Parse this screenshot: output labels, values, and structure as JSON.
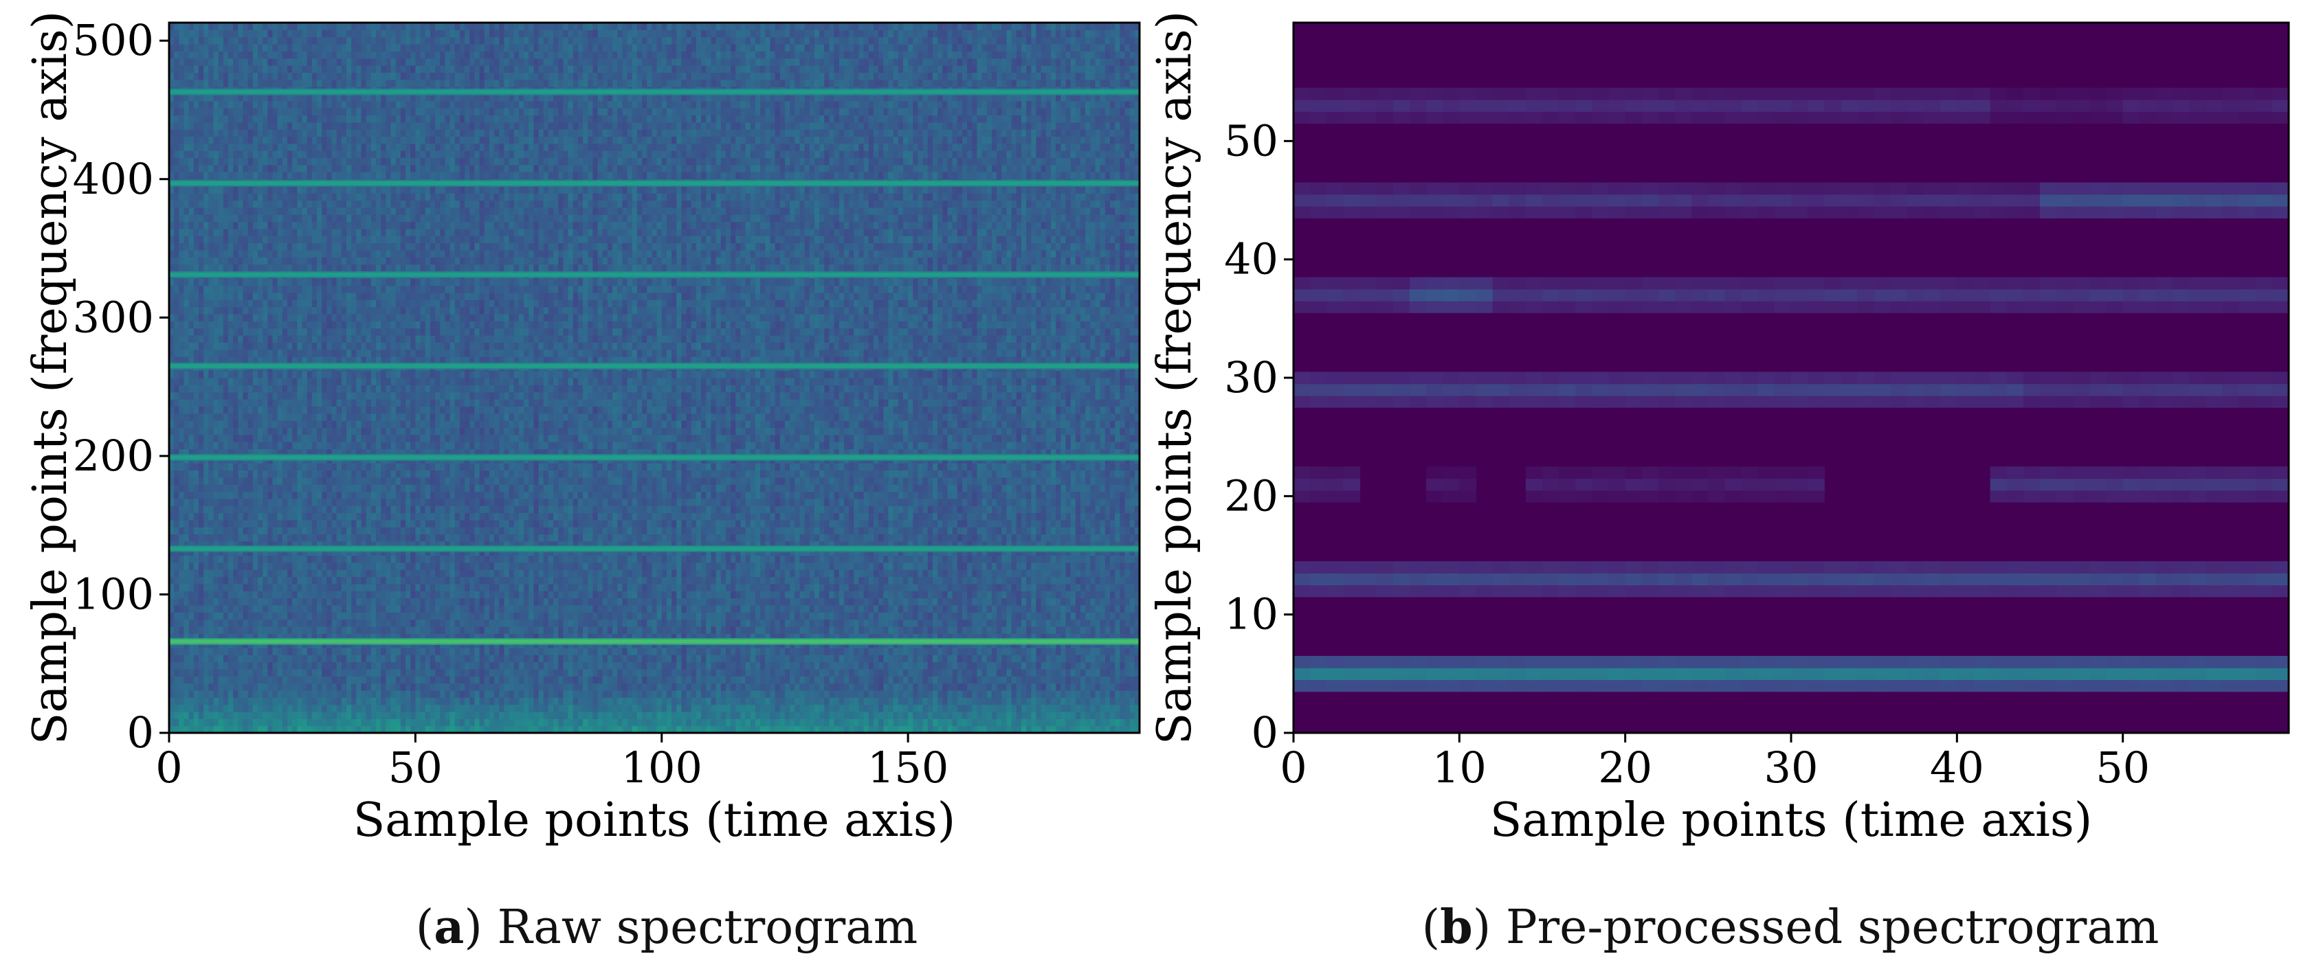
{
  "chart_data": [
    {
      "type": "heatmap",
      "caption_label": "a",
      "caption_text": "Raw spectrogram",
      "xlabel": "Sample points (time axis)",
      "ylabel": "Sample points (frequency axis)",
      "xlim": [
        0,
        197
      ],
      "ylim": [
        0,
        513
      ],
      "xticks": [
        0,
        50,
        100,
        150
      ],
      "yticks": [
        0,
        100,
        200,
        300,
        400,
        500
      ],
      "colormap": "viridis",
      "grid": false,
      "base_level": 0.3,
      "low_freq_rise": {
        "bins": 30,
        "level": 0.47
      },
      "bright_lines": [
        {
          "y": 66,
          "level": 0.7
        },
        {
          "y": 133,
          "level": 0.56
        },
        {
          "y": 199,
          "level": 0.56
        },
        {
          "y": 265,
          "level": 0.56
        },
        {
          "y": 331,
          "level": 0.55
        },
        {
          "y": 397,
          "level": 0.56
        },
        {
          "y": 463,
          "level": 0.55
        }
      ]
    },
    {
      "type": "heatmap",
      "caption_label": "b",
      "caption_text": "Pre-processed spectrogram",
      "xlabel": "Sample points (time axis)",
      "ylabel": "Sample points (frequency axis)",
      "xlim": [
        0,
        60
      ],
      "ylim": [
        0,
        60
      ],
      "xticks": [
        0,
        10,
        20,
        30,
        40,
        50
      ],
      "yticks": [
        0,
        10,
        20,
        30,
        40,
        50
      ],
      "colormap": "viridis",
      "grid": false,
      "background_level": 0.0,
      "bands": [
        {
          "y_center": 5,
          "rows": 3,
          "segments": [
            [
              0,
              60,
              0.42
            ]
          ]
        },
        {
          "y_center": 13,
          "rows": 3,
          "segments": [
            [
              0,
              60,
              0.22
            ]
          ]
        },
        {
          "y_center": 21,
          "rows": 3,
          "segments": [
            [
              0,
              4,
              0.1
            ],
            [
              8,
              11,
              0.06
            ],
            [
              14,
              32,
              0.08
            ],
            [
              42,
              60,
              0.16
            ]
          ]
        },
        {
          "y_center": 29,
          "rows": 3,
          "segments": [
            [
              0,
              44,
              0.2
            ],
            [
              44,
              60,
              0.16
            ]
          ]
        },
        {
          "y_center": 37,
          "rows": 3,
          "segments": [
            [
              0,
              7,
              0.16
            ],
            [
              7,
              12,
              0.26
            ],
            [
              12,
              60,
              0.16
            ]
          ]
        },
        {
          "y_center": 45,
          "rows": 3,
          "segments": [
            [
              0,
              24,
              0.16
            ],
            [
              24,
              45,
              0.13
            ],
            [
              45,
              60,
              0.24
            ]
          ]
        },
        {
          "y_center": 53,
          "rows": 3,
          "segments": [
            [
              0,
              42,
              0.12
            ],
            [
              42,
              50,
              0.07
            ],
            [
              50,
              60,
              0.1
            ]
          ]
        }
      ]
    }
  ]
}
